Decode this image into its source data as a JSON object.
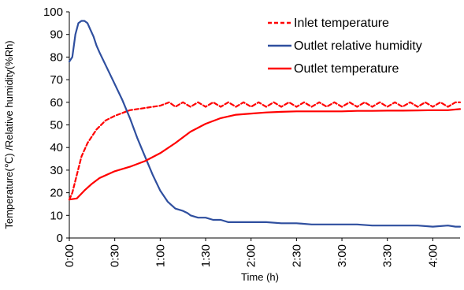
{
  "chart_data": {
    "type": "line",
    "title": "",
    "xlabel": "Time (h)",
    "ylabel": "Temperature(℃) /Relative humidity(%Rh)",
    "xlim": [
      0,
      258
    ],
    "ylim": [
      0,
      100
    ],
    "grid": false,
    "legend_position": "top-right",
    "x_ticks": [
      {
        "value": 0,
        "label": "0:00"
      },
      {
        "value": 30,
        "label": "0:30"
      },
      {
        "value": 60,
        "label": "1:00"
      },
      {
        "value": 90,
        "label": "1:30"
      },
      {
        "value": 120,
        "label": "2:00"
      },
      {
        "value": 150,
        "label": "2:30"
      },
      {
        "value": 180,
        "label": "3:00"
      },
      {
        "value": 210,
        "label": "3:30"
      },
      {
        "value": 240,
        "label": "4:00"
      }
    ],
    "y_ticks": [
      0,
      10,
      20,
      30,
      40,
      50,
      60,
      70,
      80,
      90,
      100
    ],
    "series": [
      {
        "name": "Inlet temperature",
        "color": "#ff0000",
        "style": "dashed",
        "x": [
          0,
          2,
          5,
          8,
          12,
          18,
          24,
          30,
          40,
          50,
          60,
          66,
          70,
          75,
          80,
          85,
          90,
          95,
          100,
          105,
          110,
          115,
          120,
          125,
          130,
          135,
          140,
          145,
          150,
          155,
          160,
          165,
          170,
          175,
          180,
          185,
          190,
          195,
          200,
          205,
          210,
          215,
          220,
          225,
          230,
          235,
          240,
          245,
          250,
          255,
          258
        ],
        "y": [
          17,
          20,
          28,
          36,
          42,
          48,
          52,
          54,
          56.5,
          57.5,
          58.5,
          60,
          58,
          60,
          58,
          60,
          58,
          60,
          58,
          60,
          58,
          60,
          58,
          60,
          58,
          60,
          58,
          60,
          58,
          60,
          58,
          60,
          58,
          60,
          58,
          60,
          58,
          60,
          58,
          60,
          58,
          60,
          58,
          60,
          58,
          60,
          58,
          60,
          58,
          60,
          60
        ]
      },
      {
        "name": "Outlet relative humidity",
        "color": "#2f4f9f",
        "style": "solid",
        "x": [
          0,
          2,
          4,
          6,
          8,
          10,
          12,
          14,
          16,
          18,
          20,
          25,
          30,
          35,
          40,
          45,
          50,
          55,
          60,
          65,
          70,
          75,
          78,
          80,
          85,
          90,
          95,
          100,
          105,
          110,
          120,
          130,
          140,
          150,
          160,
          170,
          180,
          190,
          200,
          210,
          220,
          230,
          240,
          250,
          255,
          258
        ],
        "y": [
          78,
          80,
          90,
          95,
          96,
          96,
          95,
          92,
          89,
          85,
          82,
          75,
          68,
          61,
          53,
          44,
          36,
          28,
          21,
          16,
          13,
          12,
          11,
          10,
          9,
          9,
          8,
          8,
          7,
          7,
          7,
          7,
          6.5,
          6.5,
          6,
          6,
          6,
          6,
          5.5,
          5.5,
          5.5,
          5.5,
          5,
          5.5,
          5,
          5
        ]
      },
      {
        "name": "Outlet temperature",
        "color": "#ff0000",
        "style": "solid",
        "x": [
          0,
          5,
          10,
          15,
          20,
          30,
          40,
          50,
          60,
          70,
          80,
          90,
          100,
          110,
          120,
          130,
          140,
          150,
          160,
          170,
          180,
          190,
          200,
          210,
          220,
          230,
          240,
          250,
          258
        ],
        "y": [
          17,
          17.5,
          21,
          24,
          26.5,
          29.5,
          31.5,
          34,
          37.5,
          42,
          47,
          50.5,
          53,
          54.5,
          55,
          55.5,
          55.8,
          56,
          56,
          56,
          56,
          56.2,
          56.2,
          56.3,
          56.3,
          56.4,
          56.5,
          56.5,
          57
        ]
      }
    ]
  }
}
